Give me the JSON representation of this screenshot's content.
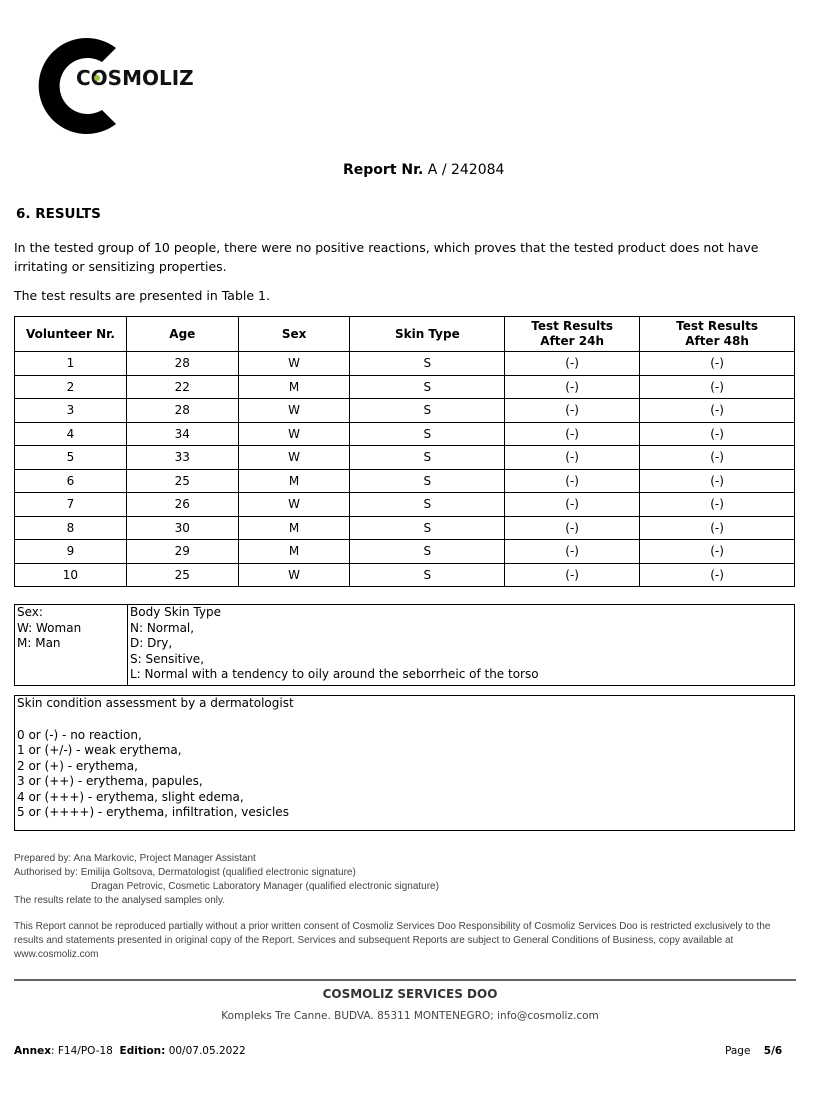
{
  "logo": {
    "text": "COSMOLIZ",
    "accent": "#9bc53d"
  },
  "report": {
    "label": "Report Nr.",
    "number": "A / 242084"
  },
  "section_title": "6. RESULTS",
  "intro": "In the tested group of 10 people, there were no positive reactions, which proves that the tested product does not have irritating or sensitizing properties.",
  "table_intro": "The test results are presented in Table 1.",
  "table": {
    "headers": [
      "Volunteer Nr.",
      "Age",
      "Sex",
      "Skin Type",
      "Test Results After 24h",
      "Test Results After 48h"
    ],
    "rows": [
      [
        "1",
        "28",
        "W",
        "S",
        "(-)",
        "(-)"
      ],
      [
        "2",
        "22",
        "M",
        "S",
        "(-)",
        "(-)"
      ],
      [
        "3",
        "28",
        "W",
        "S",
        "(-)",
        "(-)"
      ],
      [
        "4",
        "34",
        "W",
        "S",
        "(-)",
        "(-)"
      ],
      [
        "5",
        "33",
        "W",
        "S",
        "(-)",
        "(-)"
      ],
      [
        "6",
        "25",
        "M",
        "S",
        "(-)",
        "(-)"
      ],
      [
        "7",
        "26",
        "W",
        "S",
        "(-)",
        "(-)"
      ],
      [
        "8",
        "30",
        "M",
        "S",
        "(-)",
        "(-)"
      ],
      [
        "9",
        "29",
        "M",
        "S",
        "(-)",
        "(-)"
      ],
      [
        "10",
        "25",
        "W",
        "S",
        "(-)",
        "(-)"
      ]
    ]
  },
  "legend": {
    "sex": [
      "Sex:",
      "W: Woman",
      "M: Man"
    ],
    "skin": [
      "Body Skin Type",
      "N: Normal,",
      "D: Dry,",
      "S: Sensitive,",
      "L: Normal with a tendency to oily around the seborrheic of the torso"
    ]
  },
  "assessment": {
    "title": "Skin condition assessment by a dermatologist",
    "items": [
      "0 or (-) - no reaction,",
      "1 or (+/-) - weak erythema,",
      "2 or (+) - erythema,",
      "3 or (++) - erythema, papules,",
      "4 or (+++) - erythema, slight edema,",
      "5 or (++++) - erythema, infiltration, vesicles"
    ]
  },
  "signatures": [
    "Prepared by: Ana Markovic, Project Manager Assistant",
    "Authorised by: Emilija Goltsova, Dermatologist (qualified electronic signature)",
    "Dragan Petrovic, Cosmetic Laboratory Manager (qualified electronic signature)",
    "The results relate to the analysed samples only."
  ],
  "disclaimer": "This Report cannot be reproduced partially without a prior written consent of Cosmoliz Services Doo Responsibility of Cosmoliz Services Doo is restricted exclusively to the results and statements presented in original copy of the Report. Services and subsequent Reports are subject to General Conditions of Business, copy available at www.cosmoliz.com",
  "footer": {
    "company": "COSMOLIZ SERVICES DOO",
    "address": "Kompleks Tre Canne. BUDVA. 85311 MONTENEGRO; info@cosmoliz.com",
    "annex_label": "Annex",
    "annex": "F14/PO-18",
    "edition_label": "Edition:",
    "edition": "00/07.05.2022",
    "page_label": "Page",
    "page": "5/6"
  }
}
